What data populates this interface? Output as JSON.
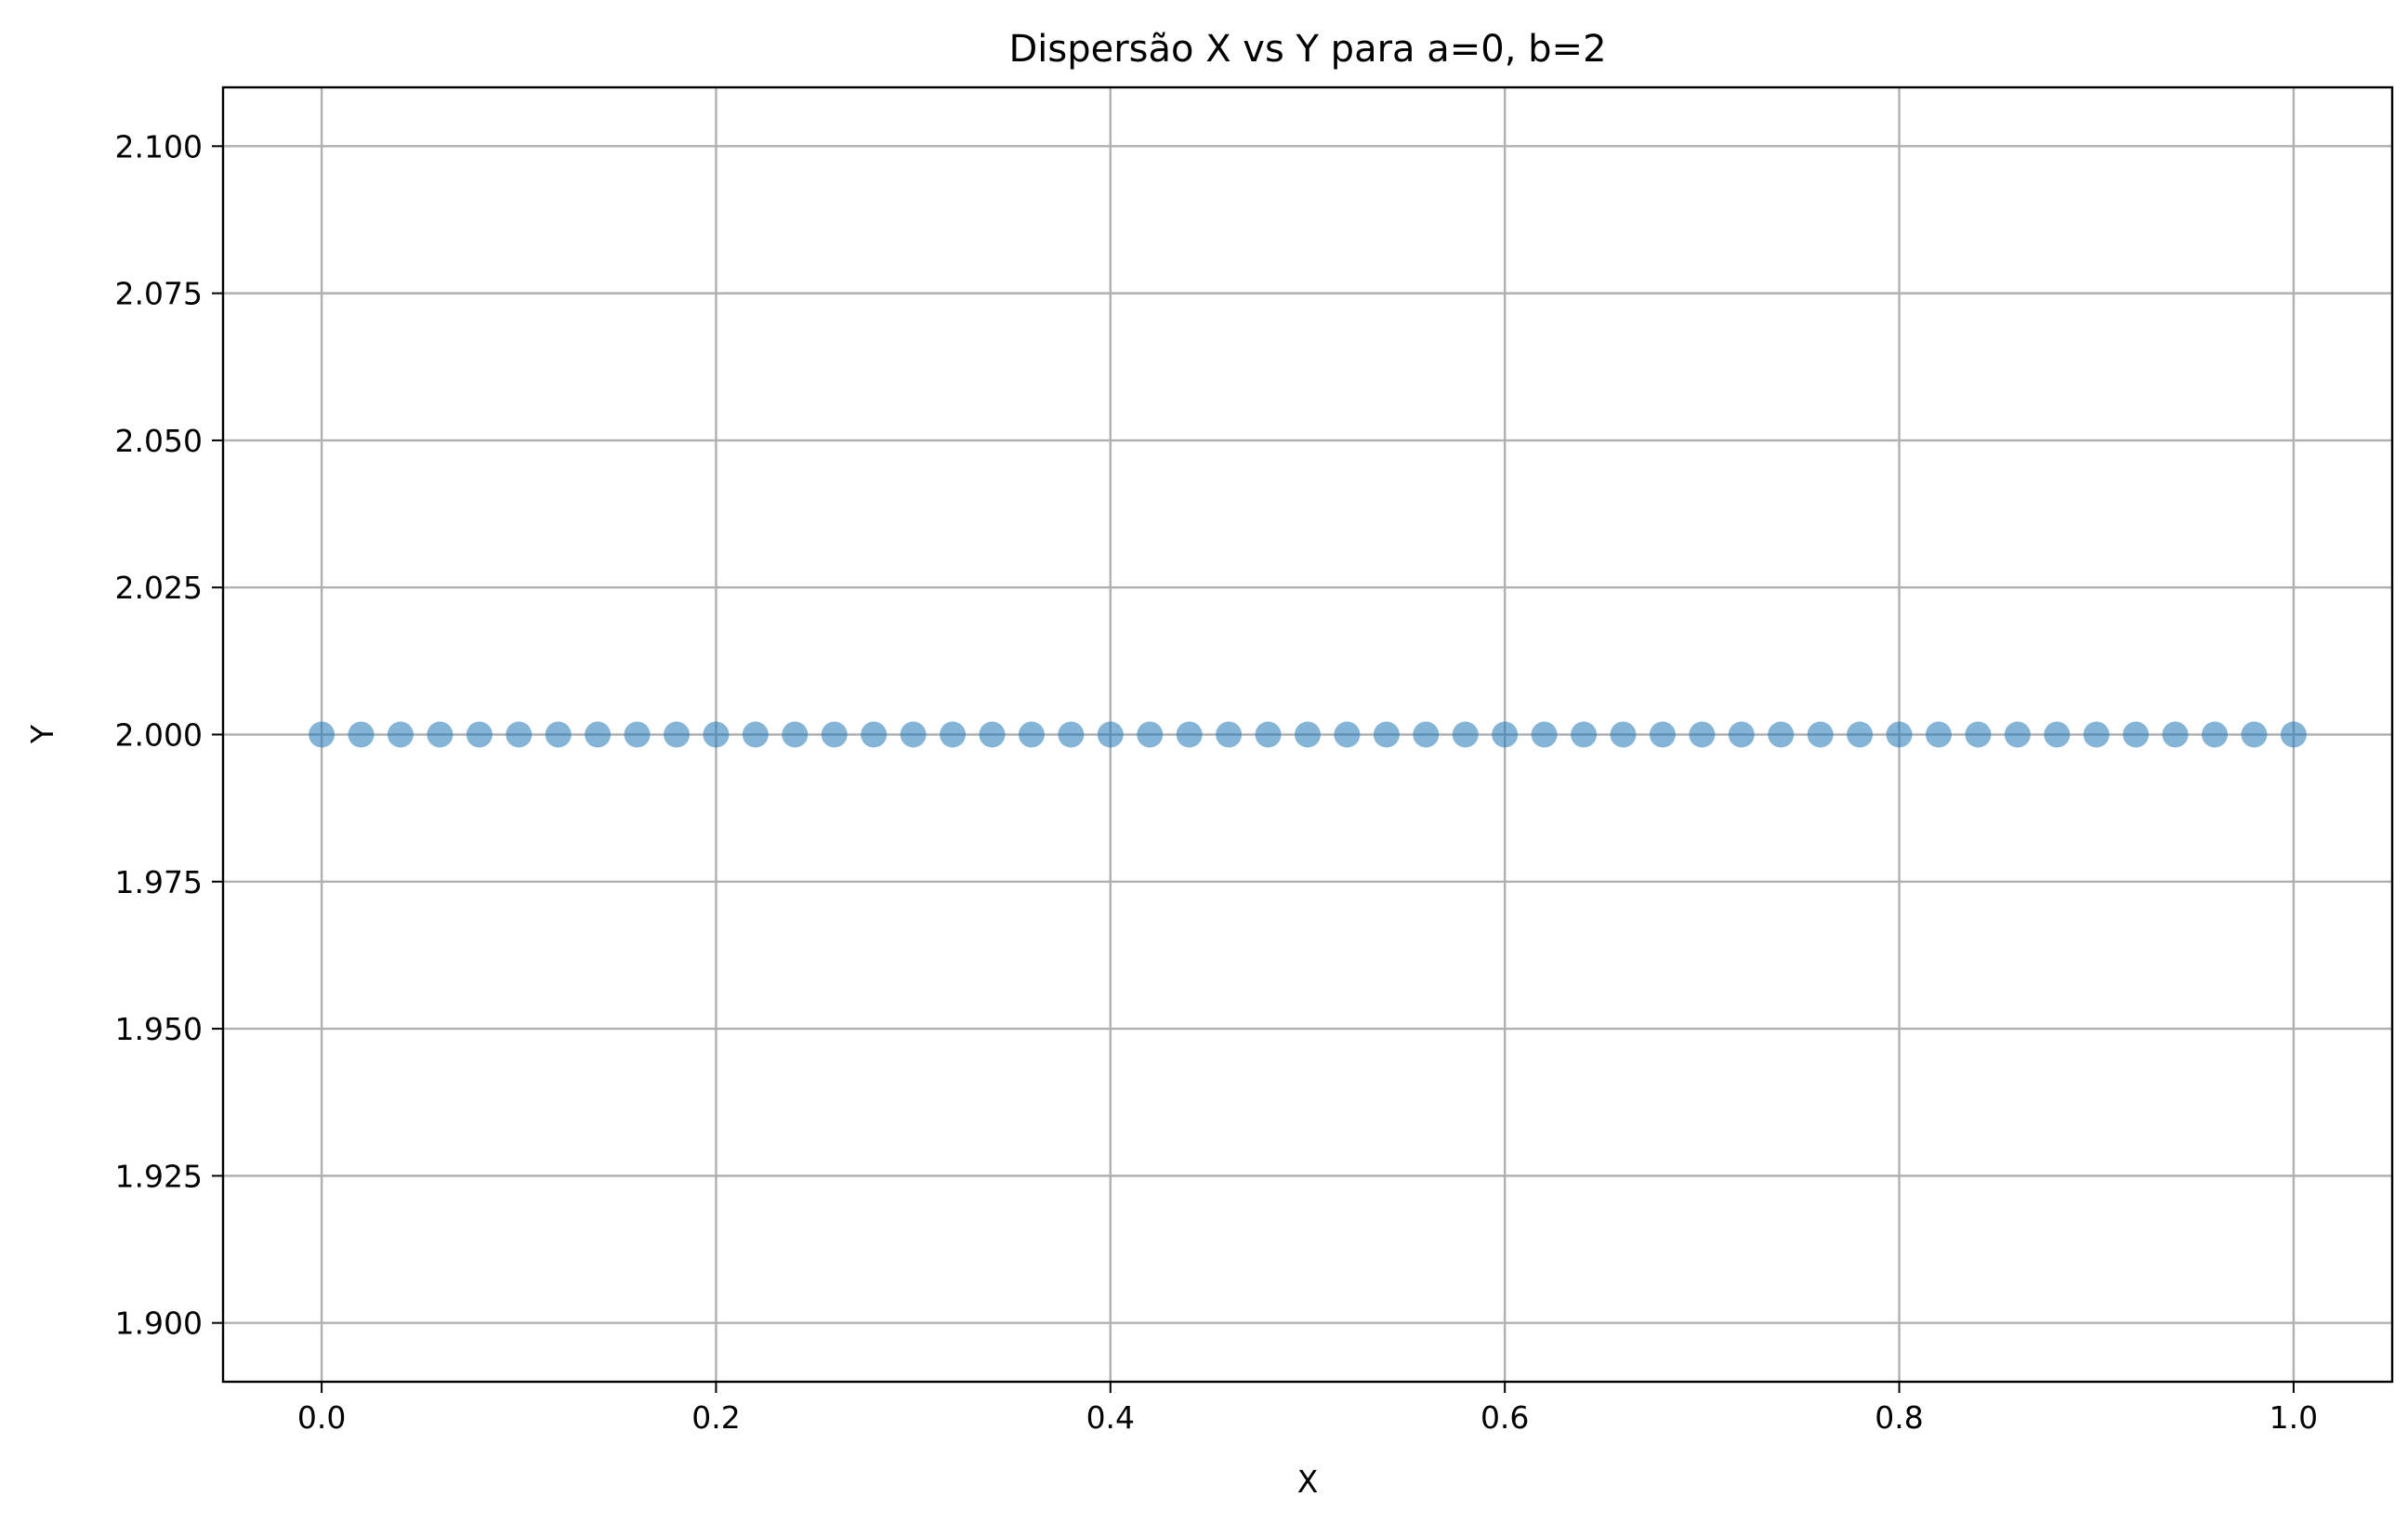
{
  "chart_data": {
    "type": "scatter",
    "title": "Dispersão X vs Y para a=0, b=2",
    "xlabel": "X",
    "ylabel": "Y",
    "xlim": [
      -0.05,
      1.05
    ],
    "ylim": [
      1.89,
      2.11
    ],
    "x_ticks": [
      0.0,
      0.2,
      0.4,
      0.6,
      0.8,
      1.0
    ],
    "x_tick_labels": [
      "0.0",
      "0.2",
      "0.4",
      "0.6",
      "0.8",
      "1.0"
    ],
    "y_ticks": [
      1.9,
      1.925,
      1.95,
      1.975,
      2.0,
      2.025,
      2.05,
      2.075,
      2.1
    ],
    "y_tick_labels": [
      "1.900",
      "1.925",
      "1.950",
      "1.975",
      "2.000",
      "2.025",
      "2.050",
      "2.075",
      "2.100"
    ],
    "grid": true,
    "series": [
      {
        "color": "#1f77b4",
        "x": [
          0.0,
          0.02,
          0.04,
          0.06,
          0.08,
          0.1,
          0.12,
          0.14,
          0.16,
          0.18,
          0.2,
          0.22,
          0.24,
          0.26,
          0.28,
          0.3,
          0.32,
          0.34,
          0.36,
          0.38,
          0.4,
          0.42,
          0.44,
          0.46,
          0.48,
          0.5,
          0.52,
          0.54,
          0.56,
          0.58,
          0.6,
          0.62,
          0.64,
          0.66,
          0.68,
          0.7,
          0.72,
          0.74,
          0.76,
          0.78,
          0.8,
          0.82,
          0.84,
          0.86,
          0.88,
          0.9,
          0.92,
          0.94,
          0.96,
          0.98,
          1.0
        ],
        "y": [
          2.0,
          2.0,
          2.0,
          2.0,
          2.0,
          2.0,
          2.0,
          2.0,
          2.0,
          2.0,
          2.0,
          2.0,
          2.0,
          2.0,
          2.0,
          2.0,
          2.0,
          2.0,
          2.0,
          2.0,
          2.0,
          2.0,
          2.0,
          2.0,
          2.0,
          2.0,
          2.0,
          2.0,
          2.0,
          2.0,
          2.0,
          2.0,
          2.0,
          2.0,
          2.0,
          2.0,
          2.0,
          2.0,
          2.0,
          2.0,
          2.0,
          2.0,
          2.0,
          2.0,
          2.0,
          2.0,
          2.0,
          2.0,
          2.0,
          2.0,
          2.0
        ]
      }
    ]
  }
}
